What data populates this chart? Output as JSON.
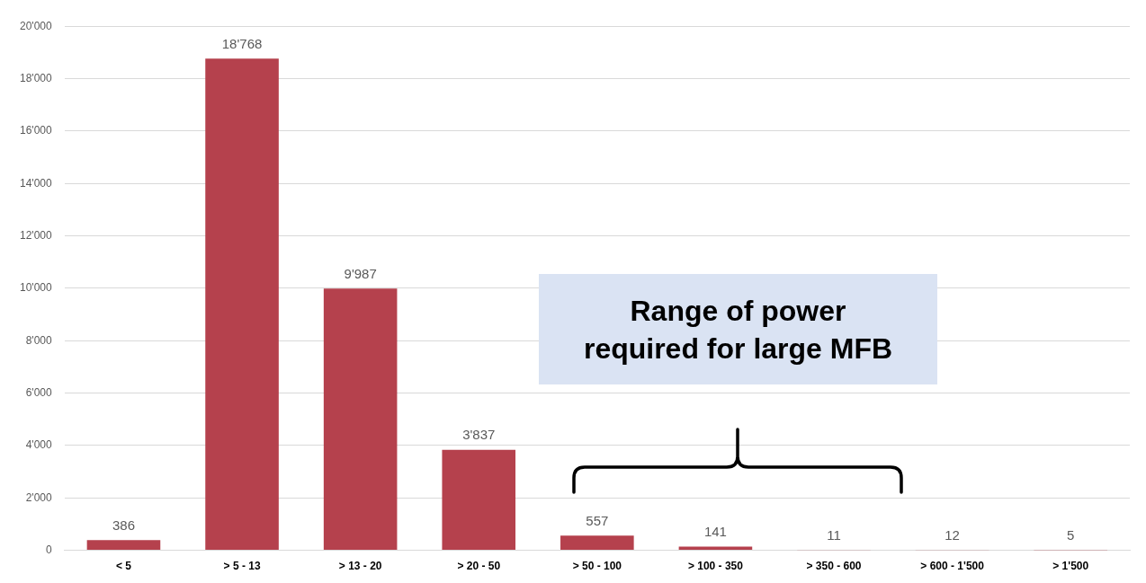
{
  "chart_data": {
    "type": "bar",
    "categories": [
      "< 5",
      "> 5 - 13",
      "> 13 - 20",
      "> 20 - 50",
      "> 50 - 100",
      "> 100 - 350",
      "> 350 - 600",
      "> 600 - 1'500",
      "> 1'500"
    ],
    "values": [
      386,
      18768,
      9987,
      3837,
      557,
      141,
      11,
      12,
      5
    ],
    "value_labels": [
      "386",
      "18'768",
      "9'987",
      "3'837",
      "557",
      "141",
      "11",
      "12",
      "5"
    ],
    "color": "#b5414d",
    "ylim": [
      0,
      20000
    ],
    "yticks": [
      0,
      {
        "value": 2000,
        "label": "2'000"
      },
      {
        "value": 4000,
        "label": "4'000"
      },
      {
        "value": 6000,
        "label": "6'000"
      },
      {
        "value": 8000,
        "label": "8'000"
      },
      {
        "value": 10000,
        "label": "10'000"
      },
      {
        "value": 12000,
        "label": "12'000"
      },
      {
        "value": 14000,
        "label": "14'000"
      },
      {
        "value": 16000,
        "label": "16'000"
      },
      {
        "value": 18000,
        "label": "18'000"
      },
      {
        "value": 20000,
        "label": "20'000"
      }
    ],
    "grid": true,
    "annotations": [
      "Range of power required for large MFB"
    ]
  }
}
